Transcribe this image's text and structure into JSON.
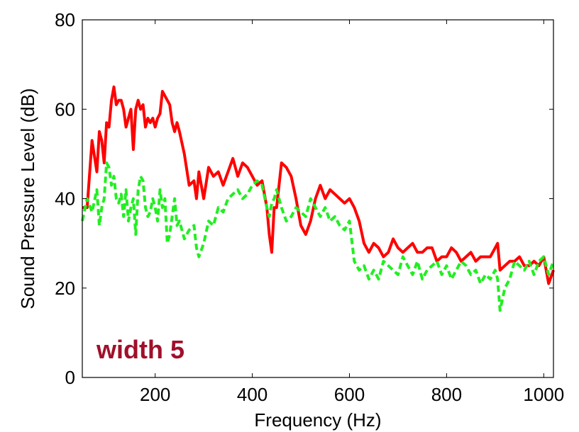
{
  "chart_data": {
    "type": "line",
    "title": "",
    "xlabel": "Frequency (Hz)",
    "ylabel": "Sound Pressure Level (dB)",
    "xlim": [
      50,
      1020
    ],
    "ylim": [
      0,
      80
    ],
    "xticks": [
      200,
      400,
      600,
      800,
      1000
    ],
    "yticks": [
      0,
      20,
      40,
      60,
      80
    ],
    "grid": false,
    "annotation": {
      "text": "width 5",
      "color": "#a0102a"
    },
    "series": [
      {
        "color": "#ff0000",
        "style": "solid",
        "x": [
          50,
          60,
          70,
          80,
          85,
          90,
          95,
          100,
          105,
          110,
          115,
          120,
          125,
          130,
          135,
          140,
          145,
          150,
          155,
          160,
          165,
          170,
          175,
          180,
          185,
          190,
          195,
          200,
          205,
          210,
          215,
          220,
          225,
          230,
          235,
          240,
          245,
          250,
          260,
          270,
          280,
          285,
          290,
          300,
          310,
          320,
          330,
          340,
          350,
          360,
          370,
          380,
          390,
          400,
          410,
          420,
          430,
          435,
          440,
          445,
          450,
          460,
          470,
          480,
          490,
          500,
          510,
          520,
          530,
          540,
          550,
          560,
          570,
          580,
          590,
          600,
          610,
          620,
          630,
          640,
          650,
          660,
          670,
          680,
          690,
          700,
          710,
          720,
          730,
          740,
          750,
          760,
          770,
          780,
          790,
          800,
          810,
          820,
          830,
          840,
          850,
          860,
          870,
          880,
          890,
          900,
          905,
          910,
          920,
          930,
          940,
          950,
          960,
          970,
          980,
          990,
          1000,
          1010,
          1020
        ],
        "y": [
          38,
          38,
          53,
          46,
          55,
          53,
          48,
          57,
          56,
          62,
          65,
          61,
          62,
          62,
          60,
          56,
          58,
          60,
          51,
          60,
          62,
          60,
          61,
          56,
          58,
          57,
          58,
          56,
          58,
          59,
          64,
          63,
          62,
          61,
          57,
          55,
          57,
          55,
          50,
          43,
          44,
          40,
          46,
          40,
          47,
          45,
          46,
          43,
          46,
          49,
          45,
          48,
          47,
          45,
          43,
          44,
          38,
          32,
          28,
          38,
          38,
          48,
          47,
          45,
          40,
          34,
          32,
          35,
          40,
          43,
          40,
          42,
          41,
          40,
          39,
          40,
          38,
          35,
          30,
          28,
          30,
          29,
          27,
          28,
          31,
          29,
          28,
          29,
          30,
          28,
          28,
          29,
          29,
          26,
          27,
          27,
          29,
          28,
          26,
          27,
          28,
          26,
          27,
          27,
          27,
          29,
          30,
          24,
          25,
          26,
          26,
          27,
          25,
          25,
          26,
          25,
          27,
          21,
          24
        ]
      },
      {
        "color": "#22ee22",
        "style": "dashed",
        "x": [
          50,
          60,
          70,
          80,
          85,
          90,
          95,
          100,
          105,
          110,
          115,
          120,
          125,
          130,
          135,
          140,
          145,
          150,
          155,
          160,
          165,
          170,
          175,
          180,
          185,
          190,
          195,
          200,
          205,
          210,
          215,
          220,
          225,
          230,
          235,
          240,
          245,
          250,
          260,
          270,
          280,
          285,
          290,
          300,
          310,
          320,
          330,
          340,
          350,
          360,
          370,
          380,
          390,
          400,
          410,
          420,
          430,
          435,
          440,
          445,
          450,
          460,
          470,
          480,
          490,
          500,
          510,
          520,
          530,
          540,
          550,
          560,
          570,
          580,
          590,
          600,
          610,
          620,
          630,
          640,
          650,
          660,
          670,
          680,
          690,
          700,
          710,
          720,
          730,
          740,
          750,
          760,
          770,
          780,
          790,
          800,
          810,
          820,
          830,
          840,
          850,
          860,
          870,
          880,
          890,
          900,
          905,
          910,
          920,
          930,
          940,
          950,
          960,
          970,
          980,
          990,
          1000,
          1010,
          1020
        ],
        "y": [
          35,
          40,
          37,
          42,
          34,
          38,
          40,
          48,
          47,
          43,
          45,
          40,
          39,
          41,
          36,
          42,
          35,
          38,
          40,
          32,
          42,
          45,
          44,
          38,
          36,
          37,
          40,
          38,
          35,
          42,
          38,
          40,
          30,
          32,
          36,
          40,
          34,
          35,
          31,
          33,
          34,
          29,
          27,
          30,
          35,
          34,
          38,
          37,
          40,
          41,
          42,
          40,
          41,
          43,
          44,
          43,
          38,
          36,
          39,
          40,
          42,
          38,
          35,
          36,
          38,
          37,
          36,
          40,
          38,
          36,
          38,
          35,
          36,
          34,
          33,
          35,
          26,
          24,
          25,
          22,
          24,
          22,
          26,
          25,
          24,
          23,
          27,
          25,
          23,
          26,
          22,
          24,
          25,
          26,
          23,
          25,
          22,
          24,
          26,
          25,
          23,
          24,
          21,
          23,
          22,
          24,
          22,
          15,
          20,
          22,
          26,
          25,
          24,
          26,
          23,
          26,
          27,
          23,
          26
        ]
      }
    ]
  }
}
